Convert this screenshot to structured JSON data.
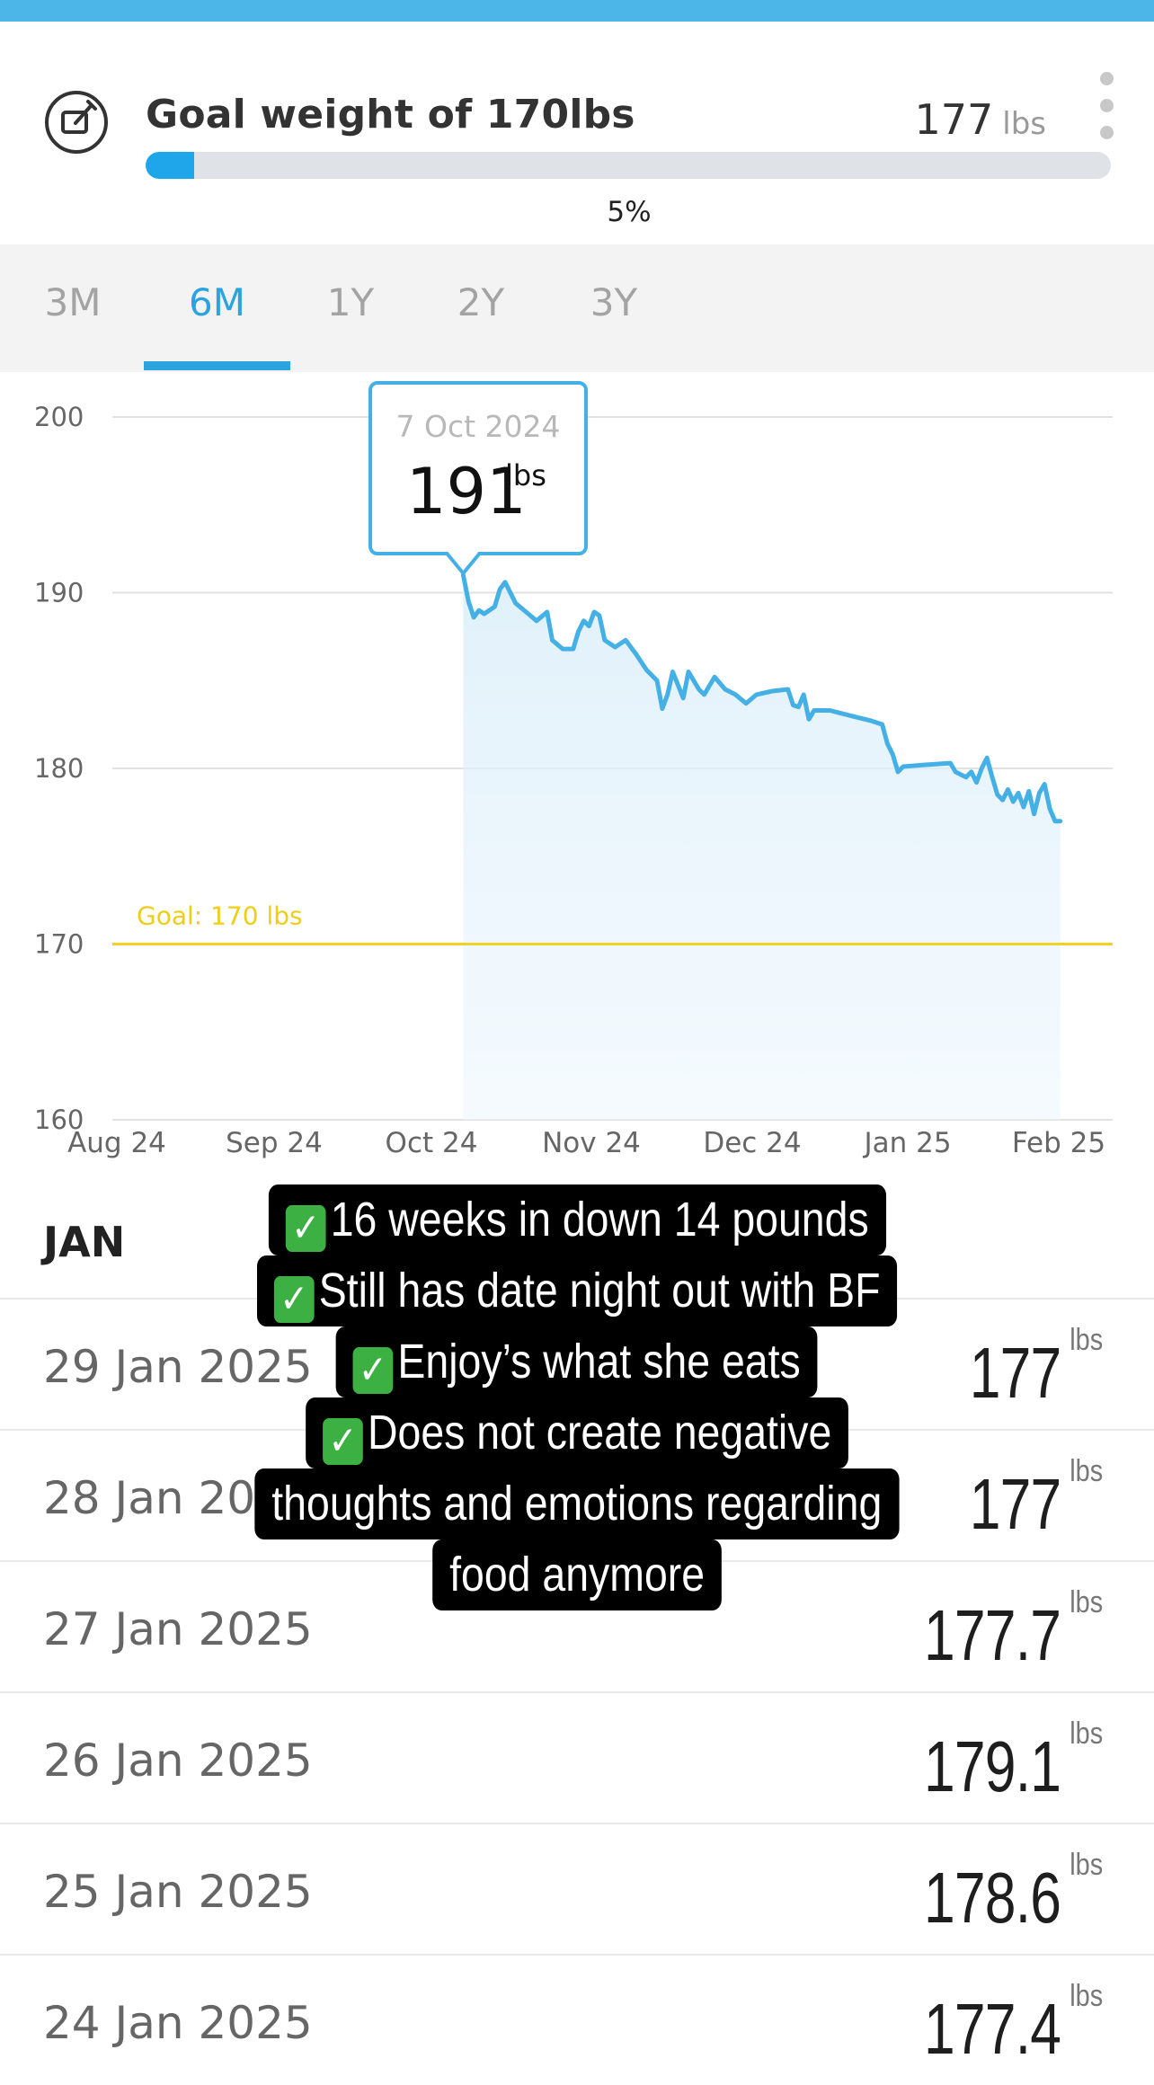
{
  "goal": {
    "title": "Goal weight of 170lbs",
    "current_value": "177",
    "current_unit": "lbs",
    "progress_fraction": 0.05,
    "progress_label": "5%",
    "accent_color": "#1fa6ea"
  },
  "tabs": [
    {
      "label": "3M",
      "active": false
    },
    {
      "label": "6M",
      "active": true
    },
    {
      "label": "1Y",
      "active": false
    },
    {
      "label": "2Y",
      "active": false
    },
    {
      "label": "3Y",
      "active": false
    }
  ],
  "chart_data": {
    "type": "area",
    "y_ticks": [
      "200",
      "190",
      "180",
      "170",
      "160"
    ],
    "ylim": [
      160,
      200
    ],
    "x_labels": [
      "Aug 24",
      "Sep 24",
      "Oct 24",
      "Nov 24",
      "Dec 24",
      "Jan 25",
      "Feb 25"
    ],
    "goal_line": {
      "value": 170,
      "label": "Goal: 170 lbs",
      "color": "#f2d21f"
    },
    "line_color": "#45b0e6",
    "tooltip": {
      "date": "7 Oct 2024",
      "value": "191",
      "unit": "lbs"
    },
    "series": [
      {
        "points": [
          [
            "2024-10-07",
            191
          ],
          [
            "2024-10-08",
            189.5
          ],
          [
            "2024-10-09",
            188.6
          ],
          [
            "2024-10-10",
            189
          ],
          [
            "2024-10-11",
            188.8
          ],
          [
            "2024-10-13",
            189.2
          ],
          [
            "2024-10-14",
            190.2
          ],
          [
            "2024-10-15",
            190.6
          ],
          [
            "2024-10-17",
            189.4
          ],
          [
            "2024-10-19",
            188.9
          ],
          [
            "2024-10-21",
            188.4
          ],
          [
            "2024-10-23",
            188.9
          ],
          [
            "2024-10-24",
            187.3
          ],
          [
            "2024-10-26",
            186.8
          ],
          [
            "2024-10-28",
            186.8
          ],
          [
            "2024-10-29",
            187.8
          ],
          [
            "2024-10-30",
            188.4
          ],
          [
            "2024-10-31",
            188.1
          ],
          [
            "2024-11-01",
            188.9
          ],
          [
            "2024-11-02",
            188.7
          ],
          [
            "2024-11-03",
            187.3
          ],
          [
            "2024-11-05",
            186.9
          ],
          [
            "2024-11-07",
            187.3
          ],
          [
            "2024-11-09",
            186.5
          ],
          [
            "2024-11-11",
            185.6
          ],
          [
            "2024-11-13",
            185.0
          ],
          [
            "2024-11-14",
            183.4
          ],
          [
            "2024-11-15",
            184.2
          ],
          [
            "2024-11-16",
            185.5
          ],
          [
            "2024-11-18",
            184.0
          ],
          [
            "2024-11-19",
            185.5
          ],
          [
            "2024-11-21",
            184.5
          ],
          [
            "2024-11-22",
            184.2
          ],
          [
            "2024-11-24",
            185.2
          ],
          [
            "2024-11-26",
            184.5
          ],
          [
            "2024-11-28",
            184.2
          ],
          [
            "2024-11-30",
            183.7
          ],
          [
            "2024-12-02",
            184.2
          ],
          [
            "2024-12-05",
            184.4
          ],
          [
            "2024-12-08",
            184.5
          ],
          [
            "2024-12-09",
            183.6
          ],
          [
            "2024-12-10",
            183.5
          ],
          [
            "2024-12-11",
            184.2
          ],
          [
            "2024-12-12",
            182.8
          ],
          [
            "2024-12-13",
            183.3
          ],
          [
            "2024-12-16",
            183.3
          ],
          [
            "2024-12-20",
            183.0
          ],
          [
            "2024-12-24",
            182.7
          ],
          [
            "2024-12-26",
            182.5
          ],
          [
            "2024-12-27",
            181.4
          ],
          [
            "2024-12-28",
            180.8
          ],
          [
            "2024-12-29",
            179.8
          ],
          [
            "2024-12-30",
            180.1
          ],
          [
            "2025-01-03",
            180.2
          ],
          [
            "2025-01-08",
            180.3
          ],
          [
            "2025-01-09",
            179.8
          ],
          [
            "2025-01-11",
            179.5
          ],
          [
            "2025-01-12",
            179.8
          ],
          [
            "2025-01-13",
            179.2
          ],
          [
            "2025-01-14",
            180.0
          ],
          [
            "2025-01-15",
            180.6
          ],
          [
            "2025-01-16",
            179.5
          ],
          [
            "2025-01-17",
            178.5
          ],
          [
            "2025-01-18",
            178.2
          ],
          [
            "2025-01-19",
            178.8
          ],
          [
            "2025-01-20",
            178.1
          ],
          [
            "2025-01-21",
            178.6
          ],
          [
            "2025-01-22",
            177.8
          ],
          [
            "2025-01-23",
            178.7
          ],
          [
            "2025-01-24",
            177.4
          ],
          [
            "2025-01-25",
            178.6
          ],
          [
            "2025-01-26",
            179.1
          ],
          [
            "2025-01-27",
            177.7
          ],
          [
            "2025-01-28",
            177
          ],
          [
            "2025-01-29",
            177
          ]
        ]
      }
    ]
  },
  "month_header": "JAN",
  "entries": [
    {
      "date": "29 Jan 2025",
      "value": "177",
      "unit": "lbs"
    },
    {
      "date": "28 Jan 2025",
      "value": "177",
      "unit": "lbs"
    },
    {
      "date": "27 Jan 2025",
      "value": "177.7",
      "unit": "lbs"
    },
    {
      "date": "26 Jan 2025",
      "value": "179.1",
      "unit": "lbs"
    },
    {
      "date": "25 Jan 2025",
      "value": "178.6",
      "unit": "lbs"
    },
    {
      "date": "24 Jan 2025",
      "value": "177.4",
      "unit": "lbs"
    }
  ],
  "overlay": {
    "lines": [
      {
        "check": true,
        "text": "16 weeks in down 14 pounds"
      },
      {
        "check": true,
        "text": "Still has date night out with BF"
      },
      {
        "check": true,
        "text": "Enjoy’s what she eats"
      },
      {
        "check": true,
        "text": "Does not create negative"
      },
      {
        "check": false,
        "text": "thoughts and emotions regarding"
      },
      {
        "check": false,
        "text": "food anymore"
      }
    ]
  }
}
